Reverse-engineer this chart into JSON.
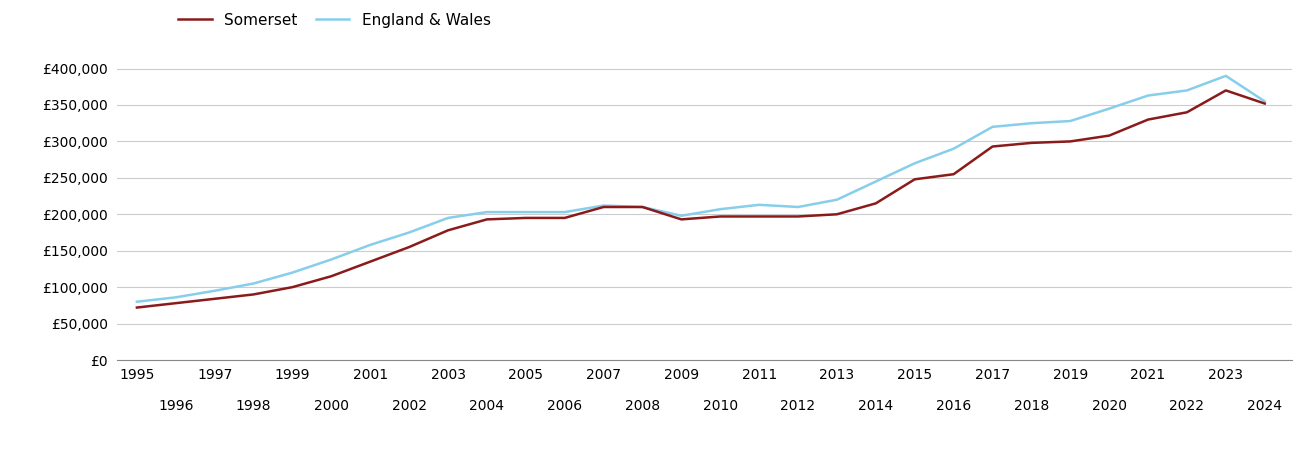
{
  "somerset_years": [
    1995,
    1996,
    1997,
    1998,
    1999,
    2000,
    2001,
    2002,
    2003,
    2004,
    2005,
    2006,
    2007,
    2008,
    2009,
    2010,
    2011,
    2012,
    2013,
    2014,
    2015,
    2016,
    2017,
    2018,
    2019,
    2020,
    2021,
    2022,
    2023,
    2024
  ],
  "somerset_values": [
    72000,
    78000,
    84000,
    90000,
    100000,
    115000,
    135000,
    155000,
    178000,
    193000,
    195000,
    195000,
    210000,
    210000,
    193000,
    197000,
    197000,
    197000,
    200000,
    215000,
    248000,
    255000,
    293000,
    298000,
    300000,
    308000,
    330000,
    340000,
    370000,
    352000
  ],
  "england_years": [
    1995,
    1996,
    1997,
    1998,
    1999,
    2000,
    2001,
    2002,
    2003,
    2004,
    2005,
    2006,
    2007,
    2008,
    2009,
    2010,
    2011,
    2012,
    2013,
    2014,
    2015,
    2016,
    2017,
    2018,
    2019,
    2020,
    2021,
    2022,
    2023,
    2024
  ],
  "england_values": [
    80000,
    86000,
    95000,
    105000,
    120000,
    138000,
    158000,
    175000,
    195000,
    203000,
    203000,
    203000,
    212000,
    210000,
    198000,
    207000,
    213000,
    210000,
    220000,
    245000,
    270000,
    290000,
    320000,
    325000,
    328000,
    345000,
    363000,
    370000,
    390000,
    355000
  ],
  "somerset_color": "#8B1A1A",
  "england_color": "#87CEEB",
  "somerset_label": "Somerset",
  "england_label": "England & Wales",
  "ylim": [
    0,
    420000
  ],
  "yticks": [
    0,
    50000,
    100000,
    150000,
    200000,
    250000,
    300000,
    350000,
    400000
  ],
  "ytick_labels": [
    "£0",
    "£50,000",
    "£100,000",
    "£150,000",
    "£200,000",
    "£250,000",
    "£300,000",
    "£350,000",
    "£400,000"
  ],
  "background_color": "#ffffff",
  "grid_color": "#cccccc",
  "line_width": 1.8,
  "legend_fontsize": 11,
  "tick_fontsize": 10,
  "xlim": [
    1994.5,
    2024.7
  ]
}
